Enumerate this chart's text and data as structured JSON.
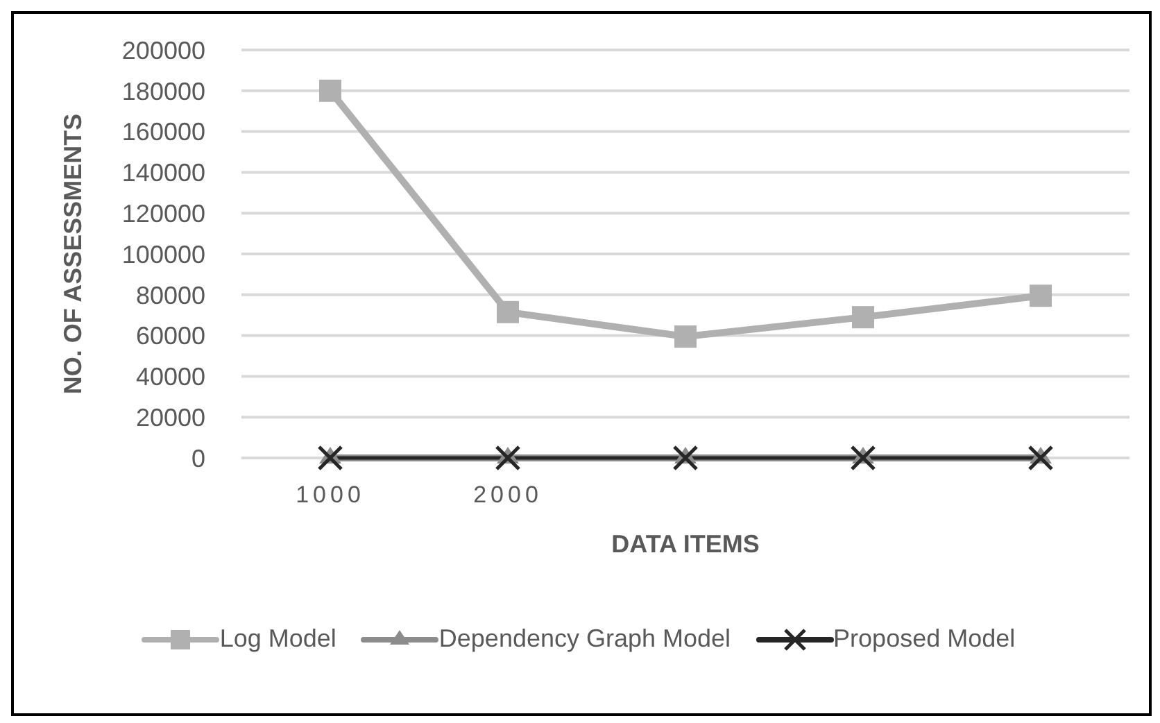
{
  "chart_data": {
    "type": "line",
    "xlabel": "DATA ITEMS",
    "ylabel": "NO. OF ASSESSMENTS",
    "categories": [
      "1000",
      "2000",
      null,
      null,
      null
    ],
    "series": [
      {
        "name": "Log Model",
        "color": "#b0b0b0",
        "marker": "square",
        "values": [
          180000,
          71500,
          59500,
          69000,
          79500
        ]
      },
      {
        "name": "Dependency Graph Model",
        "color": "#8c8c8c",
        "marker": "triangle",
        "values": [
          0,
          0,
          0,
          0,
          0
        ]
      },
      {
        "name": "Proposed Model",
        "color": "#262626",
        "marker": "cross",
        "values": [
          0,
          0,
          0,
          0,
          0
        ]
      }
    ],
    "ylim": [
      0,
      200000
    ],
    "yticks": [
      0,
      20000,
      40000,
      60000,
      80000,
      100000,
      120000,
      140000,
      160000,
      180000,
      200000
    ],
    "grid": "y",
    "legend": "bottom"
  }
}
